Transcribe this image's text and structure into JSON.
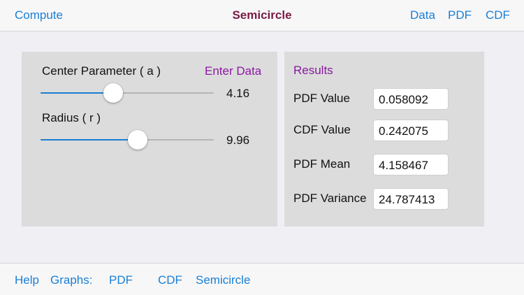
{
  "nav": {
    "compute_label": "Compute",
    "title": "Semicircle",
    "data_label": "Data",
    "pdf_label": "PDF",
    "cdf_label": "CDF"
  },
  "inputs": {
    "center_label": "Center Parameter ( a  )",
    "enter_data_label": "Enter Data",
    "center_value": "4.16",
    "center_slider_fraction": 0.42,
    "radius_label": "Radius ( r )",
    "radius_value": "9.96",
    "radius_slider_fraction": 0.56
  },
  "results": {
    "heading": "Results",
    "pdf_value_label": "PDF Value",
    "pdf_value": "0.058092",
    "cdf_value_label": "CDF Value",
    "cdf_value": "0.242075",
    "pdf_mean_label": "PDF Mean",
    "pdf_mean": "4.158467",
    "pdf_variance_label": "PDF Variance",
    "pdf_variance": "24.787413"
  },
  "bottom": {
    "help_label": "Help",
    "graphs_label": "Graphs:",
    "pdf_label": "PDF",
    "cdf_label": "CDF",
    "semicircle_label": "Semicircle"
  },
  "colors": {
    "accent": "#1a7fd4",
    "title": "#7a1b45",
    "purple_link": "#8a1aa0",
    "panel": "#dcdcdc"
  }
}
